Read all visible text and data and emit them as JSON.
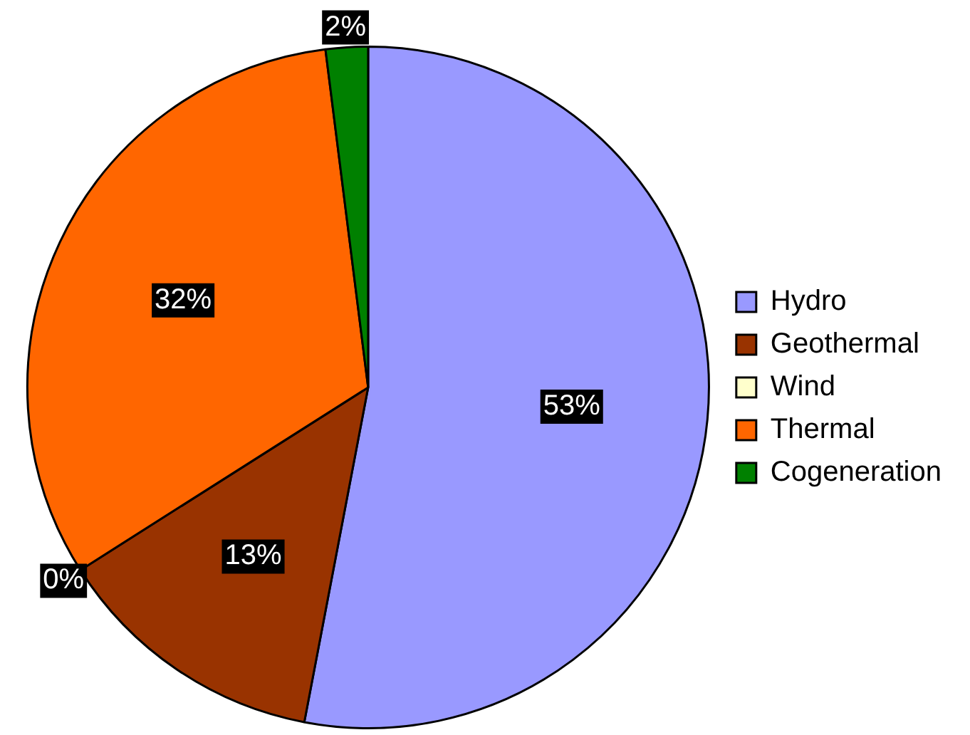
{
  "chart_data": {
    "type": "pie",
    "categories": [
      "Hydro",
      "Geothermal",
      "Wind",
      "Thermal",
      "Cogeneration"
    ],
    "values": [
      53,
      13,
      0,
      32,
      2
    ],
    "colors": [
      "#9999ff",
      "#993300",
      "#ffffcc",
      "#ff6600",
      "#008000"
    ],
    "value_labels": [
      "53%",
      "13%",
      "0%",
      "32%",
      "2%"
    ],
    "legend": "right"
  }
}
